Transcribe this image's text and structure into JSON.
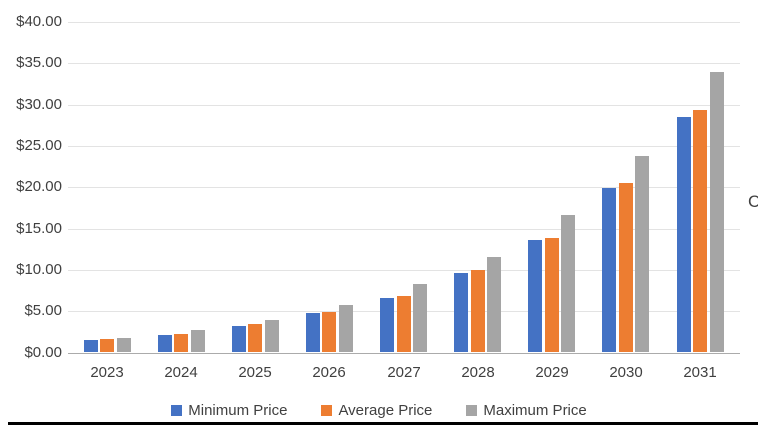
{
  "chart_data": {
    "type": "bar",
    "title": "",
    "xlabel": "",
    "ylabel": "",
    "categories": [
      "2023",
      "2024",
      "2025",
      "2026",
      "2027",
      "2028",
      "2029",
      "2030",
      "2031"
    ],
    "series": [
      {
        "name": "Minimum Price",
        "color": "#4472C4",
        "values": [
          1.5,
          2.1,
          3.2,
          4.8,
          6.6,
          9.6,
          13.6,
          19.9,
          28.5
        ]
      },
      {
        "name": "Average Price",
        "color": "#ED7D31",
        "values": [
          1.6,
          2.3,
          3.4,
          4.9,
          6.9,
          10.0,
          13.9,
          20.5,
          29.4
        ]
      },
      {
        "name": "Maximum Price",
        "color": "#A5A5A5",
        "values": [
          1.8,
          2.7,
          3.9,
          5.8,
          8.3,
          11.6,
          16.7,
          23.8,
          33.9
        ]
      }
    ],
    "y_axis": {
      "min": 0,
      "max": 40,
      "step": 5,
      "tick_labels": [
        "$0.00",
        "$5.00",
        "$10.00",
        "$15.00",
        "$20.00",
        "$25.00",
        "$30.00",
        "$35.00",
        "$40.00"
      ]
    },
    "grid": true,
    "legend_position": "bottom"
  },
  "legend": {
    "items": [
      "Minimum Price",
      "Average Price",
      "Maximum Price"
    ]
  },
  "clipped_text_right": "C",
  "colors": {
    "min_series": "#4472C4",
    "avg_series": "#ED7D31",
    "max_series": "#A5A5A5",
    "gridline": "#e3e3e3",
    "axis_line": "#ababab",
    "text": "#404040"
  }
}
